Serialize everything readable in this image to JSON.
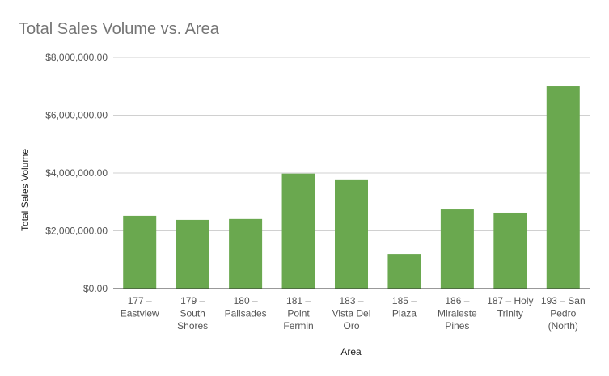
{
  "chart_data": {
    "type": "bar",
    "title": "Total Sales Volume vs. Area",
    "xlabel": "Area",
    "ylabel": "Total Sales Volume",
    "categories": [
      [
        "177 –",
        "Eastview"
      ],
      [
        "179 –",
        "South",
        "Shores"
      ],
      [
        "180 –",
        "Palisades"
      ],
      [
        "181 –",
        "Point",
        "Fermin"
      ],
      [
        "183 –",
        "Vista Del",
        "Oro"
      ],
      [
        "185 –",
        "Plaza"
      ],
      [
        "186 –",
        "Miraleste",
        "Pines"
      ],
      [
        "187 – Holy",
        "Trinity"
      ],
      [
        "193 – San",
        "Pedro",
        "(North)"
      ]
    ],
    "values": [
      2520000,
      2380000,
      2410000,
      3980000,
      3780000,
      1200000,
      2740000,
      2630000,
      7020000
    ],
    "ylim": [
      0,
      8000000
    ],
    "yticks": [
      0,
      2000000,
      4000000,
      6000000,
      8000000
    ],
    "ytick_labels": [
      "$0.00",
      "$2,000,000.00",
      "$4,000,000.00",
      "$6,000,000.00",
      "$8,000,000.00"
    ],
    "grid": true,
    "legend": "none",
    "colors": {
      "bar": "#6aa84f"
    }
  }
}
